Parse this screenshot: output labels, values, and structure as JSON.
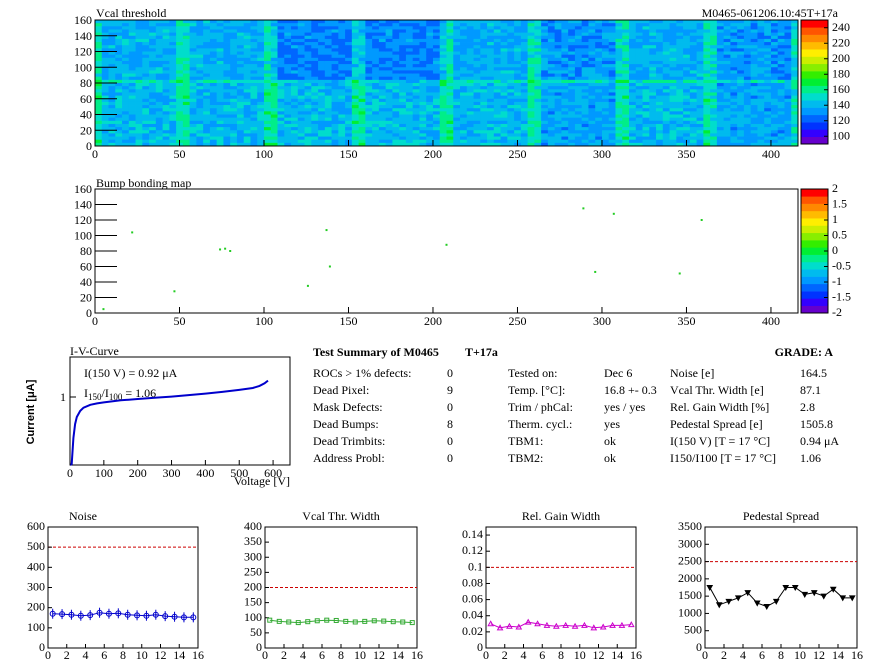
{
  "header": {
    "title": "Vcal threshold",
    "run_id": "M0465-061206.10:45T+17a"
  },
  "heatmap": {
    "title": "Vcal threshold",
    "x_ticks": [
      "0",
      "50",
      "100",
      "150",
      "200",
      "250",
      "300",
      "350",
      "400"
    ],
    "y_ticks": [
      "0",
      "20",
      "40",
      "60",
      "80",
      "100",
      "120",
      "140",
      "160"
    ],
    "xlim": [
      0,
      416
    ],
    "ylim": [
      0,
      160
    ],
    "palette_ticks": [
      "100",
      "120",
      "140",
      "160",
      "180",
      "200",
      "220",
      "240"
    ],
    "palette_range": [
      90,
      250
    ]
  },
  "bump_map": {
    "title": "Bump bonding map",
    "x_ticks": [
      "0",
      "50",
      "100",
      "150",
      "200",
      "250",
      "300",
      "350",
      "400"
    ],
    "y_ticks": [
      "0",
      "20",
      "40",
      "60",
      "80",
      "100",
      "120",
      "140",
      "160"
    ],
    "xlim": [
      0,
      416
    ],
    "ylim": [
      0,
      160
    ],
    "palette_ticks": [
      "2",
      "1.5",
      "1",
      "0.5",
      "0",
      "-0.5",
      "-1",
      "-1.5",
      "-2"
    ],
    "points": [
      {
        "x": 5,
        "y": 5
      },
      {
        "x": 22,
        "y": 104
      },
      {
        "x": 47,
        "y": 28
      },
      {
        "x": 74,
        "y": 82
      },
      {
        "x": 77,
        "y": 83
      },
      {
        "x": 80,
        "y": 80
      },
      {
        "x": 126,
        "y": 35
      },
      {
        "x": 137,
        "y": 107
      },
      {
        "x": 139,
        "y": 60
      },
      {
        "x": 208,
        "y": 88
      },
      {
        "x": 289,
        "y": 135
      },
      {
        "x": 296,
        "y": 53
      },
      {
        "x": 307,
        "y": 128
      },
      {
        "x": 346,
        "y": 51
      },
      {
        "x": 359,
        "y": 120
      }
    ]
  },
  "iv_curve": {
    "title": "I-V-Curve",
    "ylabel": "Current [μA]",
    "xlabel": "Voltage [V]",
    "x_ticks": [
      "0",
      "100",
      "200",
      "300",
      "400",
      "500",
      "600"
    ],
    "y_tick": "1",
    "annotation1": "I(150 V) = 0.92 μA",
    "annotation2": "I150/I100 = 1.06",
    "annotation2_main": "I",
    "annotation2_sub1": "150",
    "annotation2_mid": "/I",
    "annotation2_sub2": "100",
    "annotation2_value": " = 1.06",
    "points": [
      [
        0,
        0.05
      ],
      [
        5,
        0.18
      ],
      [
        10,
        0.35
      ],
      [
        15,
        0.5
      ],
      [
        20,
        0.6
      ],
      [
        30,
        0.7
      ],
      [
        40,
        0.76
      ],
      [
        60,
        0.82
      ],
      [
        80,
        0.85
      ],
      [
        100,
        0.87
      ],
      [
        150,
        0.92
      ],
      [
        200,
        0.95
      ],
      [
        250,
        0.98
      ],
      [
        300,
        1.01
      ],
      [
        350,
        1.05
      ],
      [
        400,
        1.09
      ],
      [
        450,
        1.14
      ],
      [
        500,
        1.2
      ],
      [
        540,
        1.26
      ],
      [
        560,
        1.33
      ],
      [
        575,
        1.42
      ],
      [
        585,
        1.52
      ]
    ]
  },
  "summary": {
    "title": "Test Summary of M0465",
    "temp_label": "T+17a",
    "grade": "GRADE:  A",
    "defects": [
      {
        "label": "ROCs > 1% defects:",
        "value": "0"
      },
      {
        "label": "Dead Pixel:",
        "value": "9"
      },
      {
        "label": "Mask Defects:",
        "value": "0"
      },
      {
        "label": "Dead Bumps:",
        "value": "8"
      },
      {
        "label": "Dead Trimbits:",
        "value": "0"
      },
      {
        "label": "Address Probl:",
        "value": "0"
      }
    ],
    "conditions": [
      {
        "label": "Tested on:",
        "value": "Dec 6"
      },
      {
        "label": "Temp. [°C]:",
        "value": "16.8 +- 0.3"
      },
      {
        "label": "Trim / phCal:",
        "value": "yes / yes"
      },
      {
        "label": "Therm. cycl.:",
        "value": "yes"
      },
      {
        "label": "TBM1:",
        "value": "ok"
      },
      {
        "label": "TBM2:",
        "value": "ok"
      }
    ],
    "results": [
      {
        "label": "Noise [e]",
        "value": "164.5"
      },
      {
        "label": "Vcal Thr. Width [e]",
        "value": "87.1"
      },
      {
        "label": "Rel. Gain Width [%]",
        "value": "2.8"
      },
      {
        "label": "Pedestal Spread [e]",
        "value": "1505.8"
      },
      {
        "label": "I(150 V)  [T = 17 °C]",
        "value": "0.94 μA"
      },
      {
        "label": "I150/I100  [T = 17 °C]",
        "value": "1.06"
      }
    ]
  },
  "chart_data": [
    {
      "type": "line",
      "title": "Noise",
      "x": [
        0,
        1,
        2,
        3,
        4,
        5,
        6,
        7,
        8,
        9,
        10,
        11,
        12,
        13,
        14,
        15
      ],
      "values": [
        170,
        168,
        165,
        160,
        163,
        175,
        170,
        172,
        165,
        162,
        160,
        165,
        158,
        155,
        152,
        152
      ],
      "ylim": [
        0,
        600
      ],
      "xlim": [
        0,
        16
      ],
      "y_ticks": [
        "0",
        "100",
        "200",
        "300",
        "400",
        "500",
        "600"
      ],
      "x_ticks": [
        "0",
        "2",
        "4",
        "6",
        "8",
        "10",
        "12",
        "14",
        "16"
      ],
      "limit": 500,
      "color": "#0000cc",
      "marker": "circle"
    },
    {
      "type": "line",
      "title": "Vcal Thr. Width",
      "x": [
        0,
        1,
        2,
        3,
        4,
        5,
        6,
        7,
        8,
        9,
        10,
        11,
        12,
        13,
        14,
        15
      ],
      "values": [
        92,
        88,
        86,
        84,
        87,
        90,
        92,
        91,
        88,
        86,
        88,
        90,
        89,
        87,
        86,
        84
      ],
      "ylim": [
        0,
        400
      ],
      "xlim": [
        0,
        16
      ],
      "y_ticks": [
        "0",
        "50",
        "100",
        "150",
        "200",
        "250",
        "300",
        "350",
        "400"
      ],
      "x_ticks": [
        "0",
        "2",
        "4",
        "6",
        "8",
        "10",
        "12",
        "14",
        "16"
      ],
      "limit": 200,
      "color": "#33aa33",
      "marker": "square"
    },
    {
      "type": "line",
      "title": "Rel. Gain Width",
      "x": [
        0,
        1,
        2,
        3,
        4,
        5,
        6,
        7,
        8,
        9,
        10,
        11,
        12,
        13,
        14,
        15
      ],
      "values": [
        0.03,
        0.025,
        0.027,
        0.026,
        0.032,
        0.03,
        0.028,
        0.027,
        0.028,
        0.027,
        0.028,
        0.025,
        0.026,
        0.028,
        0.028,
        0.029
      ],
      "ylim": [
        0,
        0.15
      ],
      "xlim": [
        0,
        16
      ],
      "y_ticks": [
        "0",
        "0.02",
        "0.04",
        "0.06",
        "0.08",
        "0.1",
        "0.12",
        "0.14"
      ],
      "x_ticks": [
        "0",
        "2",
        "4",
        "6",
        "8",
        "10",
        "12",
        "14",
        "16"
      ],
      "limit": 0.1,
      "color": "#cc00cc",
      "marker": "triangle"
    },
    {
      "type": "line",
      "title": "Pedestal Spread",
      "x": [
        0,
        1,
        2,
        3,
        4,
        5,
        6,
        7,
        8,
        9,
        10,
        11,
        12,
        13,
        14,
        15
      ],
      "values": [
        1750,
        1250,
        1350,
        1450,
        1600,
        1300,
        1200,
        1350,
        1750,
        1750,
        1550,
        1600,
        1500,
        1700,
        1450,
        1450
      ],
      "ylim": [
        0,
        3500
      ],
      "xlim": [
        0,
        16
      ],
      "y_ticks": [
        "0",
        "500",
        "1000",
        "1500",
        "2000",
        "2500",
        "3000",
        "3500"
      ],
      "x_ticks": [
        "0",
        "2",
        "4",
        "6",
        "8",
        "10",
        "12",
        "14",
        "16"
      ],
      "limit": 2500,
      "color": "#000000",
      "marker": "triangle-down"
    }
  ]
}
